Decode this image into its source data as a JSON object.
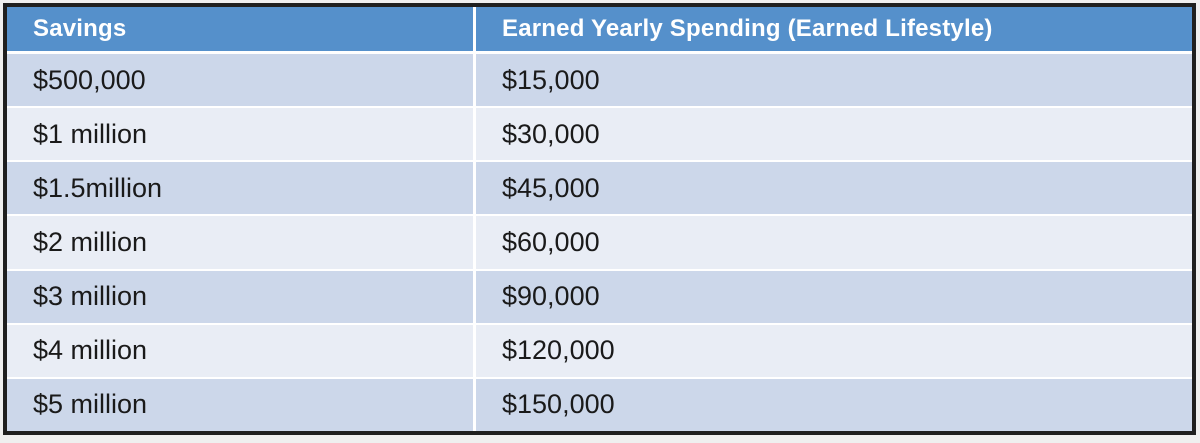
{
  "table": {
    "columns": [
      {
        "label": "Savings"
      },
      {
        "label": "Earned Yearly Spending (Earned Lifestyle)"
      }
    ],
    "rows": [
      {
        "savings": "$500,000",
        "spending": "$15,000"
      },
      {
        "savings": "$1 million",
        "spending": "$30,000"
      },
      {
        "savings": "$1.5million",
        "spending": "$45,000"
      },
      {
        "savings": "$2 million",
        "spending": "$60,000"
      },
      {
        "savings": "$3 million",
        "spending": "$90,000"
      },
      {
        "savings": "$4 million",
        "spending": "$120,000"
      },
      {
        "savings": "$5 million",
        "spending": "$150,000"
      }
    ]
  },
  "colors": {
    "header_bg": "#5590CB",
    "header_text": "#FFFFFF",
    "row_band_dark": "#CCD7EA",
    "row_band_light": "#E9EDF5",
    "border": "#1F1F1F",
    "separator": "#FFFFFF",
    "cell_text": "#1A1A1A"
  },
  "chart_data": {
    "type": "table",
    "columns": [
      "Savings",
      "Earned Yearly Spending (Earned Lifestyle)"
    ],
    "rows": [
      [
        "$500,000",
        "$15,000"
      ],
      [
        "$1 million",
        "$30,000"
      ],
      [
        "$1.5million",
        "$45,000"
      ],
      [
        "$2 million",
        "$60,000"
      ],
      [
        "$3 million",
        "$90,000"
      ],
      [
        "$4 million",
        "$120,000"
      ],
      [
        "$5 million",
        "$150,000"
      ]
    ]
  }
}
